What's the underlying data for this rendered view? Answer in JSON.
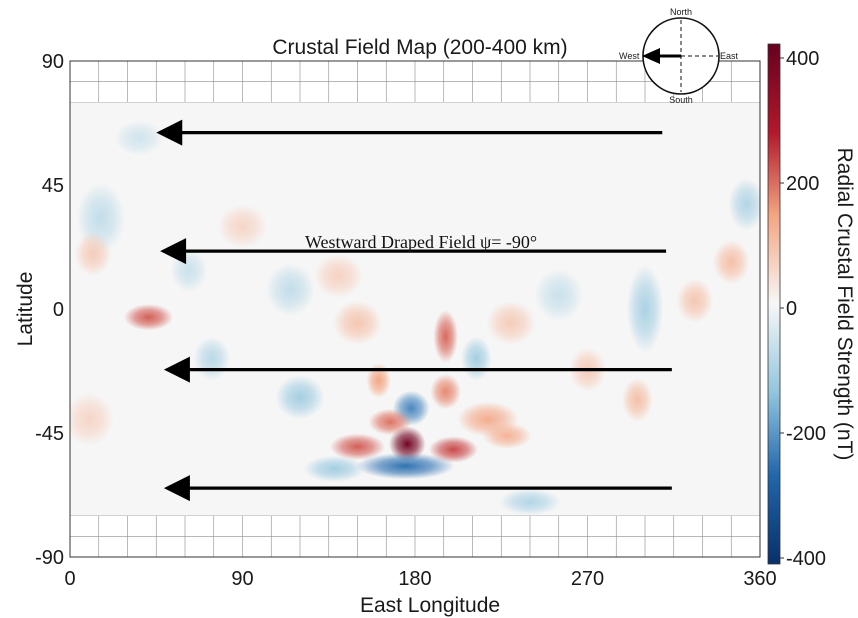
{
  "chart_data": {
    "type": "heatmap",
    "title": "Crustal Field Map (200-400 km)",
    "xlabel": "East Longitude",
    "ylabel": "Latitude",
    "xlim": [
      0,
      360
    ],
    "ylim": [
      -90,
      90
    ],
    "xticks": [
      "0",
      "90",
      "180",
      "270",
      "360"
    ],
    "yticks": [
      "90",
      "45",
      "0",
      "-45",
      "-90"
    ],
    "data_extent_lat": [
      -75,
      75
    ],
    "colorbar": {
      "label": "Radial Crustal Field Strength (nT)",
      "range": [
        -400,
        400
      ],
      "ticks": [
        "400",
        "200",
        "0",
        "-200",
        "-400"
      ],
      "colormap": [
        "#08306b",
        "#2166ac",
        "#92c5de",
        "#f7f7f7",
        "#f4a582",
        "#b2182b",
        "#67001f"
      ]
    },
    "annotation": "Westward Draped Field  ψ= -90°",
    "arrows": [
      {
        "lat": 64,
        "lon_start": 309,
        "lon_end": 45
      },
      {
        "lat": 21,
        "lon_start": 311,
        "lon_end": 47
      },
      {
        "lat": -22,
        "lon_start": 314,
        "lon_end": 49
      },
      {
        "lat": -65,
        "lon_start": 314,
        "lon_end": 49
      }
    ],
    "anomalies": [
      {
        "lon": 176,
        "lat": -49,
        "value": 380,
        "sx": 6,
        "sy": 4
      },
      {
        "lon": 200,
        "lat": -51,
        "value": 220,
        "sx": 8,
        "sy": 3
      },
      {
        "lon": 150,
        "lat": -50,
        "value": 200,
        "sx": 9,
        "sy": 3
      },
      {
        "lon": 175,
        "lat": -57,
        "value": -250,
        "sx": 16,
        "sy": 3
      },
      {
        "lon": 178,
        "lat": -36,
        "value": -220,
        "sx": 6,
        "sy": 4
      },
      {
        "lon": 167,
        "lat": -41,
        "value": 180,
        "sx": 7,
        "sy": 3
      },
      {
        "lon": 196,
        "lat": -30,
        "value": 160,
        "sx": 5,
        "sy": 4
      },
      {
        "lon": 196,
        "lat": -10,
        "value": 190,
        "sx": 4,
        "sy": 6
      },
      {
        "lon": 161,
        "lat": -26,
        "value": 130,
        "sx": 4,
        "sy": 4
      },
      {
        "lon": 41,
        "lat": -3,
        "value": 200,
        "sx": 8,
        "sy": 3
      },
      {
        "lon": 120,
        "lat": -32,
        "value": -110,
        "sx": 8,
        "sy": 5
      },
      {
        "lon": 212,
        "lat": -18,
        "value": -110,
        "sx": 5,
        "sy": 5
      },
      {
        "lon": 218,
        "lat": -40,
        "value": 120,
        "sx": 10,
        "sy": 4
      },
      {
        "lon": 228,
        "lat": -46,
        "value": 110,
        "sx": 8,
        "sy": 3
      },
      {
        "lon": 138,
        "lat": -58,
        "value": -110,
        "sx": 10,
        "sy": 3
      },
      {
        "lon": 240,
        "lat": -70,
        "value": -90,
        "sx": 10,
        "sy": 3
      },
      {
        "lon": 300,
        "lat": 0,
        "value": -100,
        "sx": 6,
        "sy": 10
      },
      {
        "lon": 326,
        "lat": 3,
        "value": 80,
        "sx": 6,
        "sy": 5
      },
      {
        "lon": 345,
        "lat": 17,
        "value": 90,
        "sx": 6,
        "sy": 5
      },
      {
        "lon": 353,
        "lat": 38,
        "value": -90,
        "sx": 6,
        "sy": 6
      },
      {
        "lon": 16,
        "lat": 33,
        "value": -70,
        "sx": 8,
        "sy": 8
      },
      {
        "lon": 12,
        "lat": 20,
        "value": 70,
        "sx": 6,
        "sy": 5
      },
      {
        "lon": 115,
        "lat": 7,
        "value": -70,
        "sx": 8,
        "sy": 6
      },
      {
        "lon": 140,
        "lat": 12,
        "value": 60,
        "sx": 8,
        "sy": 5
      },
      {
        "lon": 90,
        "lat": 30,
        "value": 55,
        "sx": 8,
        "sy": 5
      },
      {
        "lon": 255,
        "lat": 5,
        "value": -60,
        "sx": 8,
        "sy": 6
      },
      {
        "lon": 270,
        "lat": -22,
        "value": 70,
        "sx": 6,
        "sy": 5
      },
      {
        "lon": 296,
        "lat": -33,
        "value": 90,
        "sx": 5,
        "sy": 5
      },
      {
        "lon": 74,
        "lat": -18,
        "value": -80,
        "sx": 6,
        "sy": 5
      },
      {
        "lon": 62,
        "lat": 14,
        "value": -60,
        "sx": 6,
        "sy": 5
      },
      {
        "lon": 36,
        "lat": 62,
        "value": -50,
        "sx": 8,
        "sy": 4
      },
      {
        "lon": 150,
        "lat": -5,
        "value": 80,
        "sx": 8,
        "sy": 5
      },
      {
        "lon": 230,
        "lat": -5,
        "value": 70,
        "sx": 8,
        "sy": 5
      },
      {
        "lon": 10,
        "lat": -40,
        "value": 55,
        "sx": 8,
        "sy": 6
      }
    ]
  },
  "compass": {
    "north": "North",
    "south": "South",
    "east": "East",
    "west": "West"
  },
  "colors": {
    "arrow": "#000000",
    "grid": "#8c8c8c",
    "frame": "#333333"
  }
}
